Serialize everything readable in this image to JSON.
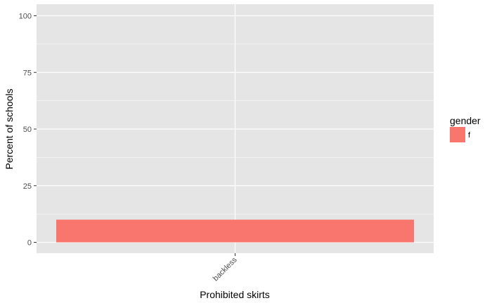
{
  "chart_data": {
    "type": "bar",
    "categories": [
      "backless"
    ],
    "series": [
      {
        "name": "f",
        "values": [
          10
        ]
      }
    ],
    "xlabel": "Prohibited skirts",
    "ylabel": "Percent of schools",
    "ylim": [
      0,
      100
    ],
    "yticks": [
      0,
      25,
      50,
      75,
      100
    ],
    "ytick_labels": [
      "0",
      "25",
      "50",
      "75",
      "100"
    ],
    "grid": true,
    "legend": {
      "title": "gender",
      "position": "right"
    }
  },
  "colors": {
    "panel_background": "#e5e5e5",
    "grid": "#ffffff",
    "bar_f": "#f8766d"
  }
}
